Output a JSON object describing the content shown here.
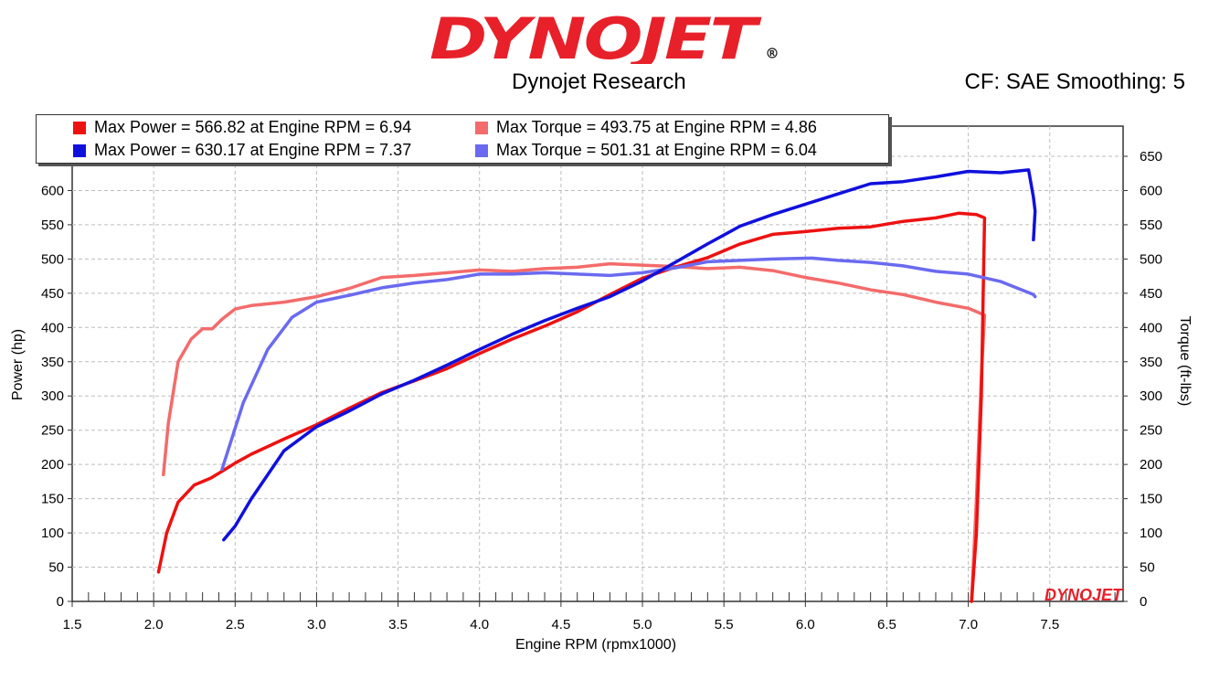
{
  "header": {
    "logo_text": "DYNOJET",
    "logo_color": "#e8202a",
    "company": "Dynojet Research",
    "correction": "CF: SAE Smoothing: 5"
  },
  "legend": [
    {
      "text": "Max Power = 566.82 at Engine RPM = 6.94",
      "color": "#ee1111"
    },
    {
      "text": "Max Torque = 493.75 at Engine RPM = 4.86",
      "color": "#f46b6b"
    },
    {
      "text": "Max Power = 630.17 at Engine RPM = 7.37",
      "color": "#1010dd"
    },
    {
      "text": "Max Torque = 501.31 at Engine RPM = 6.04",
      "color": "#6a6af0"
    }
  ],
  "watermark": "DYNOJET",
  "chart_data": {
    "type": "line",
    "xlabel": "Engine RPM (rpmx1000)",
    "ylabel_left": "Power (hp)",
    "ylabel_right": "Torque (ft-lbs)",
    "xlim": [
      1.5,
      7.95
    ],
    "ylim": [
      0,
      650
    ],
    "xticks": [
      "1.5",
      "2.0",
      "2.5",
      "3.0",
      "3.5",
      "4.0",
      "4.5",
      "5.0",
      "5.5",
      "6.0",
      "6.5",
      "7.0",
      "7.5"
    ],
    "yticks": [
      "0",
      "50",
      "100",
      "150",
      "200",
      "250",
      "300",
      "350",
      "400",
      "450",
      "500",
      "550",
      "600",
      "650"
    ],
    "grid": true,
    "series": [
      {
        "color": "#f46b6b",
        "x": [
          2.06,
          2.09,
          2.15,
          2.23,
          2.3,
          2.36,
          2.42,
          2.5,
          2.6,
          2.8,
          3.0,
          3.2,
          3.4,
          3.6,
          3.8,
          4.0,
          4.2,
          4.4,
          4.6,
          4.8,
          5.0,
          5.2,
          5.4,
          5.6,
          5.8,
          6.0,
          6.2,
          6.4,
          6.6,
          6.8,
          7.0,
          7.1,
          7.08,
          7.05,
          7.02
        ],
        "y": [
          185,
          260,
          350,
          383,
          398,
          398,
          412,
          427,
          432,
          437,
          445,
          457,
          473,
          476,
          480,
          484,
          482,
          486,
          488,
          493,
          491,
          489,
          486,
          488,
          483,
          473,
          465,
          455,
          448,
          437,
          428,
          418,
          330,
          150,
          0
        ]
      },
      {
        "color": "#ee1111",
        "x": [
          2.03,
          2.08,
          2.15,
          2.25,
          2.35,
          2.42,
          2.5,
          2.6,
          2.8,
          3.0,
          3.2,
          3.4,
          3.6,
          3.8,
          4.0,
          4.2,
          4.4,
          4.6,
          4.8,
          5.0,
          5.2,
          5.4,
          5.6,
          5.8,
          6.0,
          6.2,
          6.4,
          6.6,
          6.8,
          6.94,
          7.05,
          7.1,
          7.08,
          7.05,
          7.02
        ],
        "y": [
          43,
          100,
          145,
          170,
          180,
          190,
          202,
          215,
          237,
          258,
          282,
          305,
          322,
          340,
          362,
          383,
          402,
          423,
          448,
          472,
          488,
          502,
          522,
          536,
          540,
          545,
          547,
          555,
          560,
          566.82,
          565,
          560,
          300,
          100,
          0
        ]
      },
      {
        "color": "#6a6af0",
        "x": [
          2.42,
          2.55,
          2.7,
          2.85,
          3.0,
          3.2,
          3.4,
          3.6,
          3.8,
          4.0,
          4.2,
          4.4,
          4.6,
          4.8,
          5.0,
          5.2,
          5.4,
          5.6,
          5.8,
          6.04,
          6.2,
          6.4,
          6.6,
          6.8,
          7.0,
          7.2,
          7.4,
          7.41
        ],
        "y": [
          193,
          290,
          368,
          415,
          437,
          447,
          458,
          465,
          470,
          478,
          478,
          480,
          478,
          476,
          480,
          487,
          496,
          498,
          500,
          501.31,
          498,
          495,
          490,
          482,
          478,
          467,
          448,
          445
        ]
      },
      {
        "color": "#1010dd",
        "x": [
          2.43,
          2.5,
          2.6,
          2.7,
          2.8,
          3.0,
          3.2,
          3.4,
          3.6,
          3.8,
          4.0,
          4.2,
          4.4,
          4.6,
          4.8,
          5.0,
          5.2,
          5.4,
          5.6,
          5.8,
          6.0,
          6.2,
          6.4,
          6.6,
          6.8,
          7.0,
          7.2,
          7.37,
          7.4,
          7.41,
          7.4
        ],
        "y": [
          90,
          110,
          150,
          185,
          220,
          255,
          278,
          303,
          323,
          345,
          368,
          390,
          410,
          428,
          445,
          468,
          495,
          522,
          548,
          565,
          580,
          595,
          610,
          613,
          620,
          628,
          626,
          630.17,
          590,
          570,
          528
        ]
      }
    ]
  }
}
